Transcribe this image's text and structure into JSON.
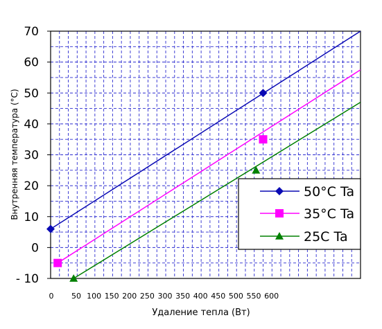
{
  "chart_data": {
    "type": "line",
    "title": "",
    "xlabel": "Удаление тепла (Вт)",
    "ylabel": "Внутренняя температура (°С)",
    "xlim": [
      0,
      875
    ],
    "ylim": [
      -10,
      70
    ],
    "x_ticks": [
      0,
      50,
      100,
      150,
      200,
      250,
      300,
      350,
      400,
      450,
      500,
      550,
      600
    ],
    "x_tick_labels": [
      "0",
      "50",
      "100",
      "150",
      "200",
      "250",
      "300",
      "350",
      "400",
      "450",
      "500",
      "550",
      "600"
    ],
    "y_ticks": [
      -10,
      0,
      10,
      20,
      30,
      40,
      50,
      60,
      70
    ],
    "y_tick_labels": [
      "- 10",
      "0",
      "10",
      "20",
      "30",
      "40",
      "50",
      "60",
      "70"
    ],
    "grid": true,
    "legend_position": "lower-right",
    "series": [
      {
        "name": "50°C Ta",
        "color": "#0a0ab4",
        "marker": "diamond",
        "line": {
          "x": [
            0,
            875
          ],
          "y": [
            6,
            70
          ]
        },
        "points": [
          {
            "x": 0,
            "y": 6
          },
          {
            "x": 600,
            "y": 50
          }
        ]
      },
      {
        "name": "35°C Ta",
        "color": "#ff00ff",
        "marker": "square",
        "line": {
          "x": [
            20,
            875
          ],
          "y": [
            -5,
            57.5
          ]
        },
        "points": [
          {
            "x": 20,
            "y": -5
          },
          {
            "x": 600,
            "y": 35
          }
        ]
      },
      {
        "name": "25С Ta",
        "color": "#008000",
        "marker": "triangle",
        "line": {
          "x": [
            65,
            875
          ],
          "y": [
            -10,
            47
          ]
        },
        "points": [
          {
            "x": 65,
            "y": -10
          },
          {
            "x": 580,
            "y": 25
          }
        ]
      }
    ]
  }
}
